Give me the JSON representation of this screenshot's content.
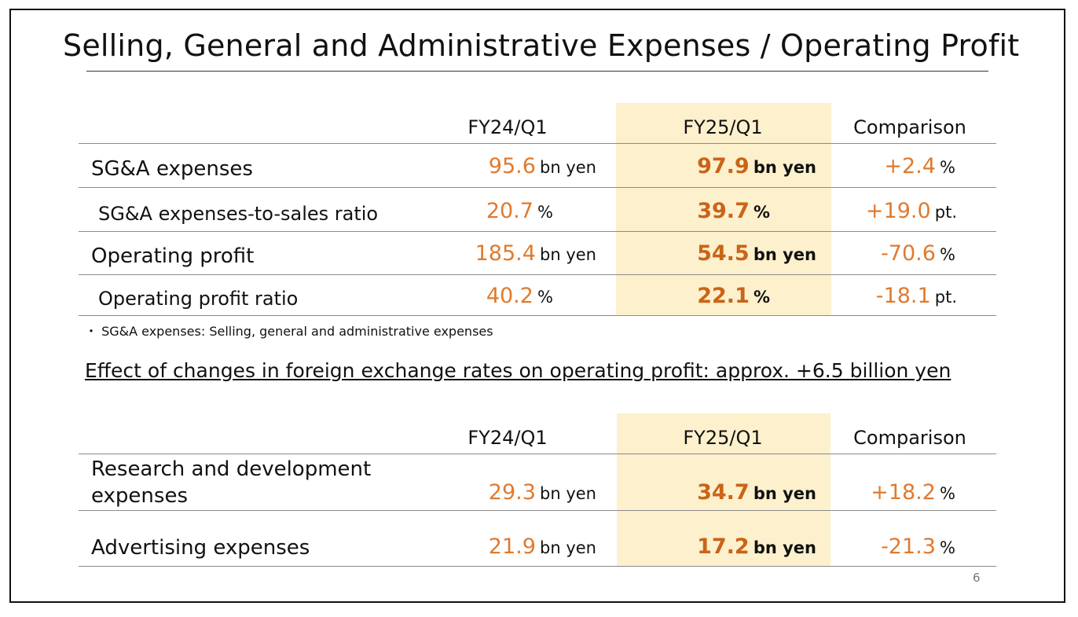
{
  "title": "Selling, General and Administrative Expenses / Operating Profit",
  "colors": {
    "highlight": "#fdf0cd",
    "accent_value": "#e07a2e",
    "bold_value": "#c96418"
  },
  "table1": {
    "headers": [
      "FY24/Q1",
      "FY25/Q1",
      "Comparison"
    ],
    "rows": [
      {
        "label": "SG&A expenses",
        "fy24": "95.6",
        "fy24_unit": "bn yen",
        "fy25": "97.9",
        "fy25_unit": "bn yen",
        "cmp": "+2.4",
        "cmp_unit": "%"
      },
      {
        "label": "SG&A expenses-to-sales ratio",
        "fy24": "20.7",
        "fy24_unit": "%",
        "fy25": "39.7",
        "fy25_unit": "%",
        "cmp": "+19.0",
        "cmp_unit": "pt."
      },
      {
        "label": "Operating profit",
        "fy24": "185.4",
        "fy24_unit": "bn yen",
        "fy25": "54.5",
        "fy25_unit": "bn yen",
        "cmp": "-70.6",
        "cmp_unit": "%"
      },
      {
        "label": "Operating profit ratio",
        "fy24": "40.2",
        "fy24_unit": "%",
        "fy25": "22.1",
        "fy25_unit": "%",
        "cmp": "-18.1",
        "cmp_unit": "pt."
      }
    ]
  },
  "note": "・ SG&A expenses: Selling, general and administrative expenses",
  "fx_effect": "Effect of changes in foreign exchange rates on operating profit: approx. +6.5 billion yen",
  "table2": {
    "headers": [
      "FY24/Q1",
      "FY25/Q1",
      "Comparison"
    ],
    "rows": [
      {
        "label_line1": "Research and development",
        "label_line2": "expenses",
        "fy24": "29.3",
        "fy24_unit": "bn yen",
        "fy25": "34.7",
        "fy25_unit": "bn yen",
        "cmp": "+18.2",
        "cmp_unit": "%"
      },
      {
        "label": "Advertising expenses",
        "fy24": "21.9",
        "fy24_unit": "bn yen",
        "fy25": "17.2",
        "fy25_unit": "bn yen",
        "cmp": "-21.3",
        "cmp_unit": "%"
      }
    ]
  },
  "page_number": "6"
}
